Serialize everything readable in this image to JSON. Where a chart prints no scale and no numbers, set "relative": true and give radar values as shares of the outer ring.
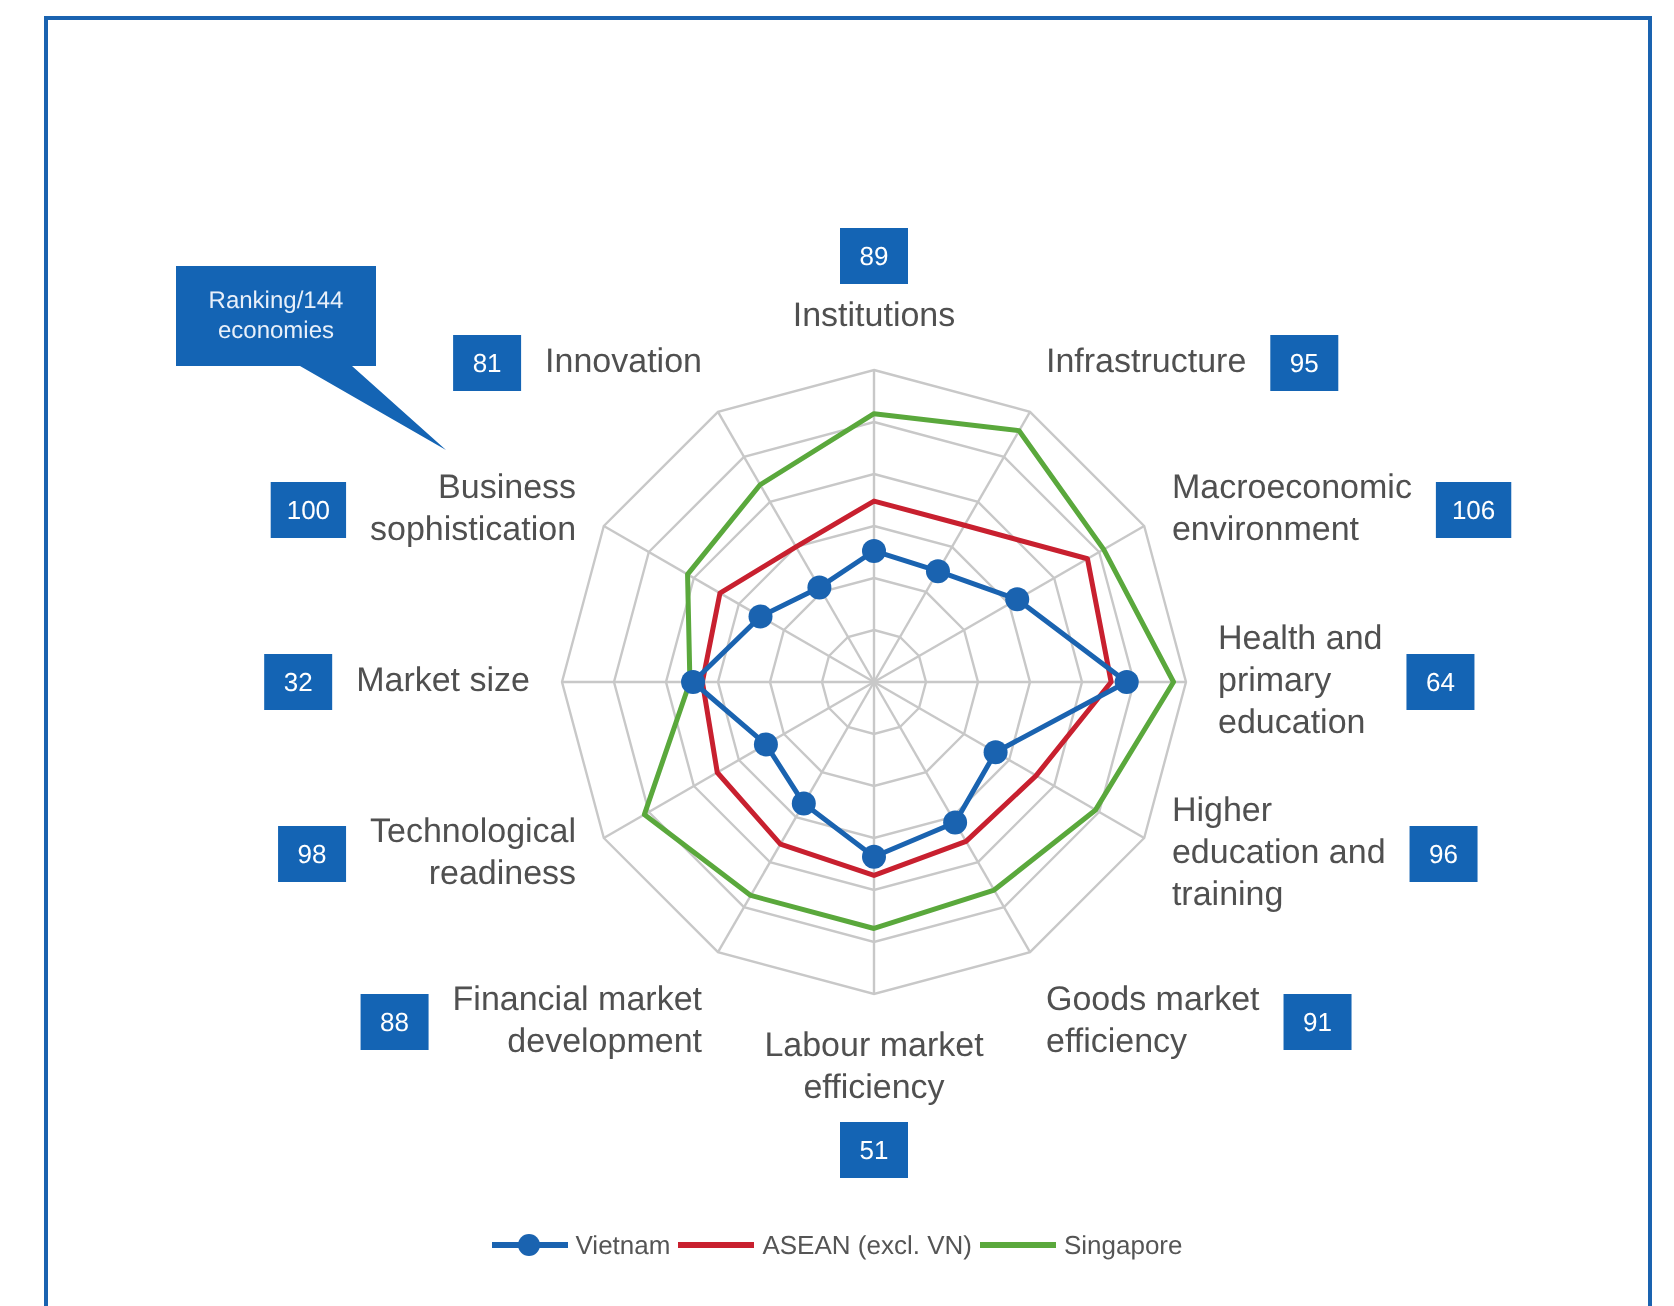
{
  "chart_data": {
    "type": "radar",
    "relative": true,
    "grid": true,
    "legend": "bottom",
    "categories": [
      "Institutions",
      "Infrastructure",
      "Macroeconomic environment",
      "Health and primary education",
      "Higher education and training",
      "Goods market efficiency",
      "Labour market efficiency",
      "Financial market development",
      "Technological readiness",
      "Market size",
      "Business sophistication",
      "Innovation"
    ],
    "series": [
      {
        "name": "Vietnam",
        "color": "#1a63b0",
        "marker": "circle",
        "values": [
          0.42,
          0.41,
          0.53,
          0.81,
          0.45,
          0.52,
          0.56,
          0.45,
          0.4,
          0.58,
          0.42,
          0.35
        ]
      },
      {
        "name": "ASEAN (excl. VN)",
        "color": "#c8202f",
        "marker": "none",
        "values": [
          0.58,
          0.58,
          0.79,
          0.76,
          0.6,
          0.59,
          0.62,
          0.6,
          0.58,
          0.55,
          0.57,
          0.5
        ]
      },
      {
        "name": "Singapore",
        "color": "#5aa83c",
        "marker": "none",
        "values": [
          0.86,
          0.93,
          0.85,
          0.96,
          0.82,
          0.77,
          0.79,
          0.79,
          0.85,
          0.59,
          0.69,
          0.73
        ]
      }
    ],
    "annotations": [
      "Ranking/144 economies",
      "89",
      "95",
      "106",
      "64",
      "96",
      "91",
      "51",
      "88",
      "98",
      "32",
      "100",
      "81"
    ]
  }
}
